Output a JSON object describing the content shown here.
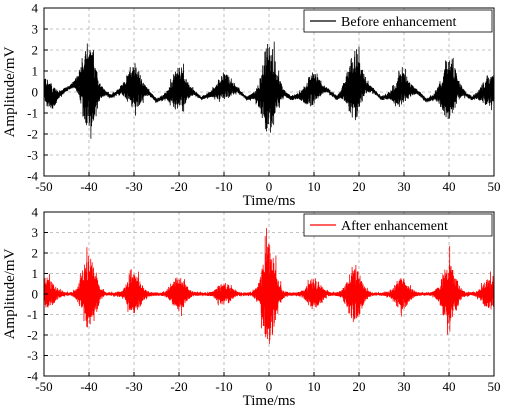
{
  "chart_data": [
    {
      "type": "line",
      "xlabel": "Time/ms",
      "ylabel": "Amplitude/mV",
      "xlim": [
        -50,
        50
      ],
      "ylim": [
        -4,
        4
      ],
      "x_ticks": [
        -50,
        -40,
        -30,
        -20,
        -10,
        0,
        10,
        20,
        30,
        40,
        50
      ],
      "y_ticks": [
        -4,
        -3,
        -2,
        -1,
        0,
        1,
        2,
        3,
        4
      ],
      "grid": true,
      "legend_position": "top-right",
      "series": [
        {
          "name": "Before enhancement",
          "color": "#000000",
          "baseline": [
            [
              -50,
              0.1
            ],
            [
              -48,
              -0.3
            ],
            [
              -46,
              0.0
            ],
            [
              -43,
              0.4
            ],
            [
              -40,
              0.2
            ],
            [
              -37,
              0.0
            ],
            [
              -35,
              -0.2
            ],
            [
              -33,
              0.1
            ],
            [
              -30,
              0.3
            ],
            [
              -27,
              0.0
            ],
            [
              -25,
              -0.4
            ],
            [
              -22,
              -0.1
            ],
            [
              -20,
              0.2
            ],
            [
              -17,
              0.0
            ],
            [
              -15,
              -0.3
            ],
            [
              -12,
              0.0
            ],
            [
              -10,
              0.3
            ],
            [
              -7,
              0.1
            ],
            [
              -5,
              -0.3
            ],
            [
              -2,
              -0.1
            ],
            [
              0,
              0.2
            ],
            [
              3,
              0.0
            ],
            [
              5,
              -0.3
            ],
            [
              8,
              -0.1
            ],
            [
              10,
              0.2
            ],
            [
              13,
              0.1
            ],
            [
              15,
              -0.3
            ],
            [
              17,
              0.1
            ],
            [
              20,
              0.4
            ],
            [
              23,
              0.1
            ],
            [
              25,
              -0.3
            ],
            [
              28,
              -0.1
            ],
            [
              30,
              0.2
            ],
            [
              33,
              0.0
            ],
            [
              35,
              -0.4
            ],
            [
              38,
              -0.1
            ],
            [
              40,
              0.3
            ],
            [
              43,
              0.0
            ],
            [
              45,
              -0.3
            ],
            [
              48,
              0.0
            ],
            [
              50,
              0.2
            ]
          ],
          "bursts": [
            {
              "t": -49,
              "amp": 0.8
            },
            {
              "t": -40,
              "amp": 2.7
            },
            {
              "t": -30,
              "amp": 1.5
            },
            {
              "t": -20,
              "amp": 1.4
            },
            {
              "t": -10,
              "amp": 0.8
            },
            {
              "t": 0,
              "amp": 3.2
            },
            {
              "t": 9.5,
              "amp": 1.0
            },
            {
              "t": 19,
              "amp": 2.3
            },
            {
              "t": 29.5,
              "amp": 1.0
            },
            {
              "t": 40,
              "amp": 2.1
            },
            {
              "t": 49,
              "amp": 1.0
            }
          ],
          "noise": 0.15
        }
      ]
    },
    {
      "type": "line",
      "xlabel": "Time/ms",
      "ylabel": "Amplitude/mV",
      "xlim": [
        -50,
        50
      ],
      "ylim": [
        -4,
        4
      ],
      "x_ticks": [
        -50,
        -40,
        -30,
        -20,
        -10,
        0,
        10,
        20,
        30,
        40,
        50
      ],
      "y_ticks": [
        -4,
        -3,
        -2,
        -1,
        0,
        1,
        2,
        3,
        4
      ],
      "grid": true,
      "legend_position": "top-right",
      "series": [
        {
          "name": "After enhancement",
          "color": "#ff0000",
          "baseline": [
            [
              -50,
              0.0
            ],
            [
              50,
              0.0
            ]
          ],
          "bursts": [
            {
              "t": -49,
              "amp": 0.9
            },
            {
              "t": -40,
              "amp": 2.6
            },
            {
              "t": -30,
              "amp": 1.3
            },
            {
              "t": -20,
              "amp": 1.1
            },
            {
              "t": -10,
              "amp": 0.7
            },
            {
              "t": 0,
              "amp": 3.4
            },
            {
              "t": 10,
              "amp": 1.0
            },
            {
              "t": 19,
              "amp": 2.0
            },
            {
              "t": 29.5,
              "amp": 1.0
            },
            {
              "t": 40,
              "amp": 2.3
            },
            {
              "t": 49,
              "amp": 1.0
            }
          ],
          "noise": 0.12
        }
      ]
    }
  ]
}
